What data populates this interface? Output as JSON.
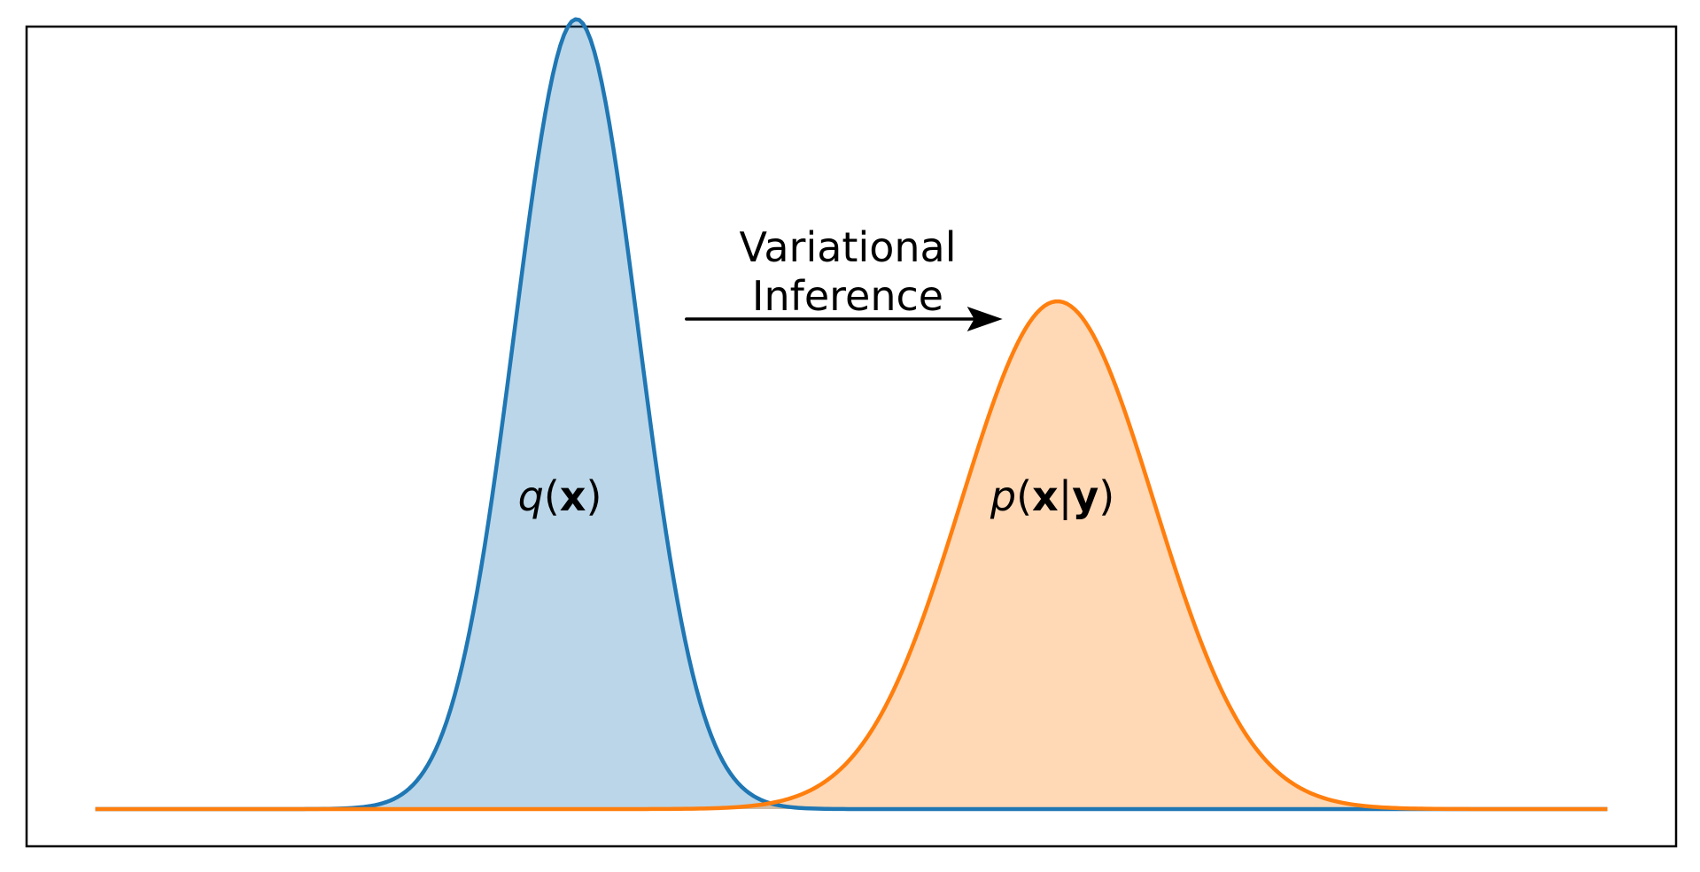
{
  "chart_data": {
    "type": "area",
    "title": "",
    "xlabel": "",
    "ylabel": "",
    "axes_visible": false,
    "grid": false,
    "frame": true,
    "xlim": [
      -6,
      6
    ],
    "ylim": [
      0,
      0.92
    ],
    "x_range": [
      -5.5,
      5.5
    ],
    "series": [
      {
        "id": "q",
        "distribution": "normal",
        "mean": -2,
        "std": 0.45,
        "peak_density": 0.887,
        "color": "#1f77b4",
        "fill_color": "#1f77b4",
        "fill_alpha": 0.3,
        "label": {
          "func": "q",
          "open": "(",
          "var": "x",
          "close": ")"
        }
      },
      {
        "id": "p",
        "distribution": "normal",
        "mean": 1.5,
        "std": 0.7,
        "peak_density": 0.57,
        "color": "#ff7f0e",
        "fill_color": "#ff7f0e",
        "fill_alpha": 0.3,
        "label": {
          "func": "p",
          "open": "(",
          "var": "x",
          "bar": "|",
          "cond": "y",
          "close": ")"
        }
      }
    ],
    "annotation": {
      "lines": [
        "Variational",
        "Inference"
      ],
      "arrow": {
        "from": [
          -1.2,
          0.55
        ],
        "to": [
          1.1,
          0.55
        ],
        "color": "#000000"
      },
      "text_anchor": [
        0.0,
        0.62
      ]
    }
  }
}
